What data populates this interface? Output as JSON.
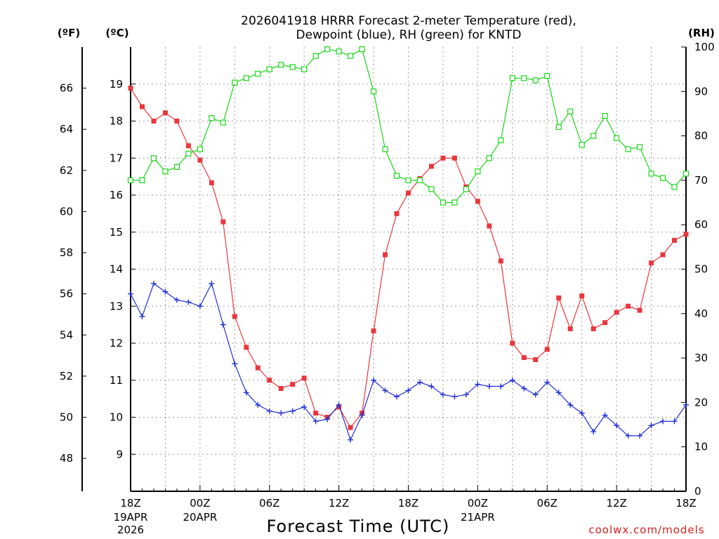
{
  "chart_data": {
    "type": "line",
    "title_line1": "2026041918 HRRR Forecast 2-meter Temperature (red),",
    "title_line2": "Dewpoint (blue), RH (green) for KNTD",
    "xlabel": "Forecast Time (UTC)",
    "credit": "coolwx.com/models",
    "credit_color": "#d81e1e",
    "unit_labels": {
      "fahrenheit": "(ºF)",
      "celsius": "(ºC)",
      "rh": "(RH)"
    },
    "x_ticks": [
      {
        "hour": 0,
        "label": "18Z",
        "sub": [
          "19APR",
          "2026"
        ]
      },
      {
        "hour": 6,
        "label": "00Z",
        "sub": [
          "20APR"
        ]
      },
      {
        "hour": 12,
        "label": "06Z",
        "sub": []
      },
      {
        "hour": 18,
        "label": "12Z",
        "sub": []
      },
      {
        "hour": 24,
        "label": "18Z",
        "sub": []
      },
      {
        "hour": 30,
        "label": "00Z",
        "sub": [
          "21APR"
        ]
      },
      {
        "hour": 36,
        "label": "06Z",
        "sub": []
      },
      {
        "hour": 42,
        "label": "12Z",
        "sub": []
      },
      {
        "hour": 48,
        "label": "18Z",
        "sub": []
      }
    ],
    "xlim": [
      0,
      48
    ],
    "ylim_celsius": [
      8.0,
      20.0
    ],
    "ylim_rh": [
      0,
      100
    ],
    "celsius_ticks": [
      "9",
      "10",
      "11",
      "12",
      "13",
      "14",
      "15",
      "16",
      "17",
      "18",
      "19"
    ],
    "fahrenheit_ticks": [
      "48",
      "50",
      "52",
      "54",
      "56",
      "58",
      "60",
      "62",
      "64",
      "66"
    ],
    "rh_ticks": [
      "0",
      "10",
      "20",
      "30",
      "40",
      "50",
      "60",
      "70",
      "80",
      "90",
      "100"
    ],
    "grid": true,
    "series": [
      {
        "name": "Temperature",
        "units": "F",
        "color": "#e8383d",
        "marker": "filled-square",
        "values": [
          66.0,
          65.1,
          64.4,
          64.8,
          64.4,
          63.2,
          62.5,
          61.4,
          59.5,
          54.9,
          53.4,
          52.4,
          51.8,
          51.4,
          51.6,
          51.9,
          50.2,
          50.0,
          50.5,
          49.5,
          50.2,
          54.2,
          57.9,
          59.9,
          60.9,
          61.6,
          62.2,
          62.6,
          62.6,
          61.2,
          60.5,
          59.3,
          57.6,
          53.6,
          52.9,
          52.8,
          53.3,
          55.8,
          54.3,
          55.9,
          54.3,
          54.6,
          55.1,
          55.4,
          55.2,
          57.5,
          57.9,
          58.6,
          58.9
        ]
      },
      {
        "name": "Dewpoint",
        "units": "F",
        "color": "#2230d8",
        "marker": "plus",
        "values": [
          56.0,
          54.9,
          56.5,
          56.1,
          55.7,
          55.6,
          55.4,
          56.5,
          54.5,
          52.6,
          51.2,
          50.6,
          50.3,
          50.2,
          50.3,
          50.5,
          49.8,
          49.9,
          50.6,
          48.9,
          50.1,
          51.8,
          51.3,
          51.0,
          51.3,
          51.7,
          51.5,
          51.1,
          51.0,
          51.1,
          51.6,
          51.5,
          51.5,
          51.8,
          51.4,
          51.1,
          51.7,
          51.2,
          50.6,
          50.2,
          49.3,
          50.1,
          49.6,
          49.1,
          49.1,
          49.6,
          49.8,
          49.8,
          50.6
        ]
      },
      {
        "name": "RH",
        "units": "%",
        "color": "#18d818",
        "marker": "open-square",
        "values": [
          70,
          70,
          75,
          72,
          73,
          76,
          77,
          84,
          83,
          92,
          93,
          94,
          95,
          96,
          95.5,
          95,
          98,
          99.5,
          99,
          98,
          99.5,
          90,
          77,
          71,
          70,
          70,
          68,
          65,
          65,
          68,
          72,
          75,
          79,
          93,
          93,
          92.5,
          93.5,
          82,
          85.5,
          78,
          80,
          84.5,
          79.5,
          77,
          77.5,
          71.5,
          70.5,
          68.5,
          71.5
        ]
      }
    ]
  }
}
